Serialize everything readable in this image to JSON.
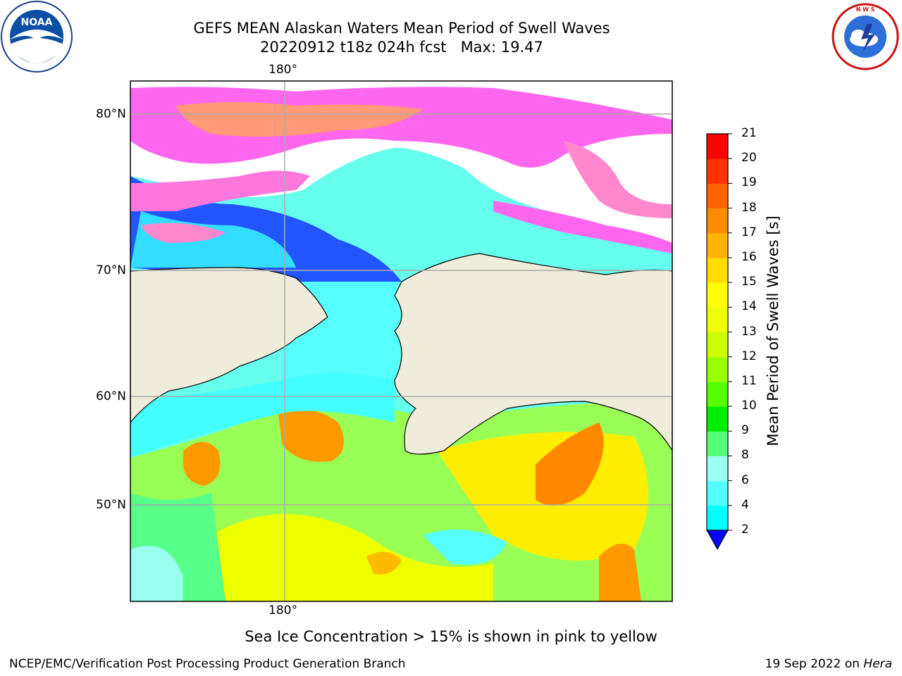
{
  "title": {
    "line1": "GEFS MEAN Alaskan Waters Mean Period of Swell Waves",
    "line2": "20220912 t18z 024h fcst   Max: 19.47"
  },
  "map": {
    "lon_label_top": "180°",
    "lon_label_bottom": "180°",
    "lat_labels": [
      "80°N",
      "70°N",
      "60°N",
      "50°N"
    ],
    "land_color": "#efecdc",
    "ocean_ice_color": "#ffffff"
  },
  "colorbar": {
    "label": "Mean Period of Swell Waves [s]",
    "ticks": [
      "21",
      "20",
      "19",
      "18",
      "17",
      "16",
      "15",
      "14",
      "13",
      "12",
      "11",
      "10",
      "9",
      "8",
      "6",
      "4",
      "2"
    ],
    "colors": [
      "#ff0000",
      "#ff3300",
      "#ff6600",
      "#ff8c00",
      "#ffb300",
      "#ffdd00",
      "#ffff00",
      "#eeff00",
      "#ccff00",
      "#99ff00",
      "#55ff00",
      "#00ee00",
      "#55ff77",
      "#99ffee",
      "#55ffff",
      "#00ffff",
      "#0099ff"
    ],
    "extend_color": "#0000ff"
  },
  "caption": "Sea Ice Concentration > 15% is shown in pink to yellow",
  "footer": {
    "left": "NCEP/EMC/Verification Post Processing Product Generation Branch",
    "right_date": "19 Sep 2022 on ",
    "right_host": "Hera"
  },
  "logos": {
    "noaa": "noaa-logo-icon",
    "nws": "nws-logo-icon"
  }
}
